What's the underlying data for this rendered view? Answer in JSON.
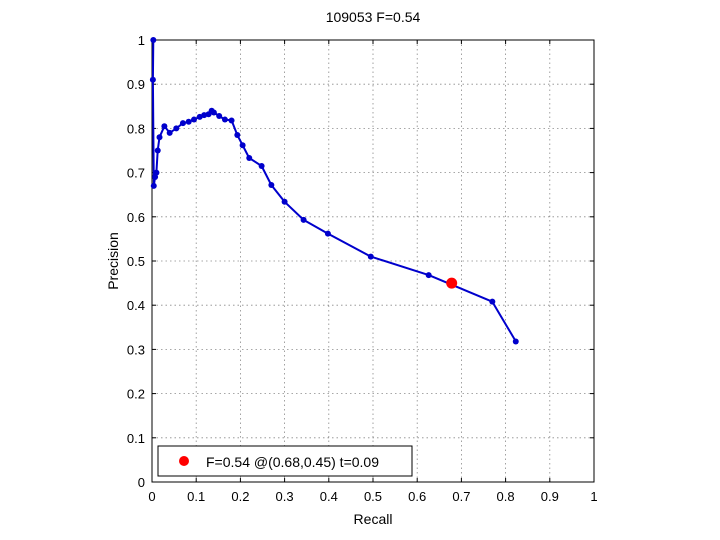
{
  "chart_data": {
    "type": "line",
    "title": "109053 F=0.54",
    "xlabel": "Recall",
    "ylabel": "Precision",
    "xlim": [
      0,
      1
    ],
    "ylim": [
      0,
      1
    ],
    "xticks": [
      "0",
      "0.1",
      "0.2",
      "0.3",
      "0.4",
      "0.5",
      "0.6",
      "0.7",
      "0.8",
      "0.9",
      "1"
    ],
    "yticks": [
      "0",
      "0.1",
      "0.2",
      "0.3",
      "0.4",
      "0.5",
      "0.6",
      "0.7",
      "0.8",
      "0.9",
      "1"
    ],
    "grid": true,
    "legend_position": "bottom-left",
    "line_color": "#0000cc",
    "marker_color": "#0000cc",
    "highlight_color": "#ff0000",
    "series": [
      {
        "points": [
          [
            0.003,
            1.0
          ],
          [
            0.002,
            0.91
          ],
          [
            0.004,
            0.67
          ],
          [
            0.007,
            0.69
          ],
          [
            0.01,
            0.7
          ],
          [
            0.013,
            0.75
          ],
          [
            0.017,
            0.78
          ],
          [
            0.028,
            0.805
          ],
          [
            0.04,
            0.79
          ],
          [
            0.055,
            0.8
          ],
          [
            0.07,
            0.812
          ],
          [
            0.083,
            0.815
          ],
          [
            0.095,
            0.82
          ],
          [
            0.108,
            0.826
          ],
          [
            0.118,
            0.83
          ],
          [
            0.128,
            0.832
          ],
          [
            0.135,
            0.84
          ],
          [
            0.14,
            0.836
          ],
          [
            0.152,
            0.828
          ],
          [
            0.165,
            0.82
          ],
          [
            0.18,
            0.818
          ],
          [
            0.193,
            0.785
          ],
          [
            0.205,
            0.762
          ],
          [
            0.22,
            0.733
          ],
          [
            0.248,
            0.715
          ],
          [
            0.27,
            0.672
          ],
          [
            0.3,
            0.634
          ],
          [
            0.343,
            0.593
          ],
          [
            0.398,
            0.562
          ],
          [
            0.495,
            0.51
          ],
          [
            0.626,
            0.468
          ],
          [
            0.77,
            0.408
          ],
          [
            0.823,
            0.318
          ]
        ]
      }
    ],
    "highlight": {
      "x": 0.678,
      "y": 0.45,
      "label": "F=0.54 @(0.68,0.45) t=0.09"
    }
  }
}
